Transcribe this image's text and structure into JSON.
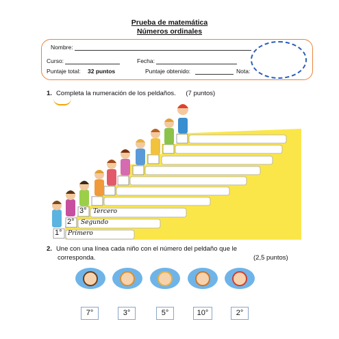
{
  "header": {
    "title": "Prueba de matemática",
    "subtitle": "Números ordinales"
  },
  "form": {
    "name_label": "Nombre:",
    "course_label": "Curso:",
    "date_label": "Fecha:",
    "total_label": "Puntaje total:",
    "total_value": "32 puntos",
    "obtained_label": "Puntaje obtenido:",
    "grade_label": "Nota:"
  },
  "question1": {
    "number": "1.",
    "text": "Completa la numeración de los peldaños.",
    "points": "(7 puntos)",
    "steps": [
      {
        "ordinal": "1°",
        "word": "Primero"
      },
      {
        "ordinal": "2°",
        "word": "Segundo"
      },
      {
        "ordinal": "3°",
        "word": "Tercero"
      }
    ]
  },
  "question2": {
    "number": "2.",
    "text_line1": "Une con una línea cada niño con el número del peldaño que le",
    "text_line2": "corresponda.",
    "points": "(2,5 puntos)",
    "numbers": [
      "7°",
      "3°",
      "5°",
      "10°",
      "2°"
    ]
  },
  "colors": {
    "box_border": "#e8823a",
    "stair": "#fbe64a",
    "circle": "#2a5bb7"
  }
}
